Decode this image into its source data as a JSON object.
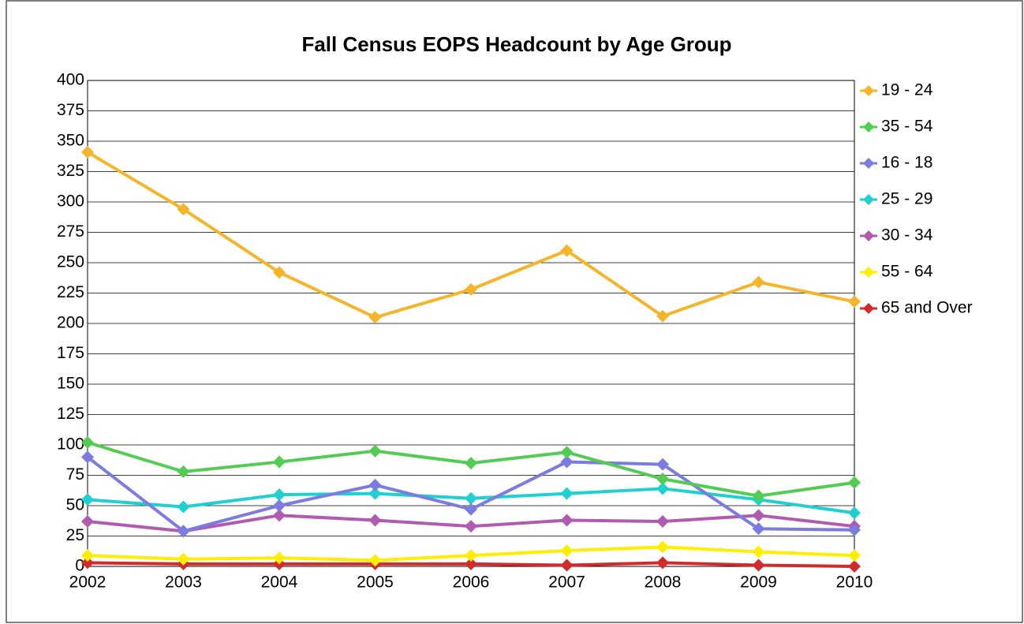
{
  "chart_data": {
    "type": "line",
    "title": "Fall Census EOPS Headcount by Age Group",
    "categories": [
      "2002",
      "2003",
      "2004",
      "2005",
      "2006",
      "2007",
      "2008",
      "2009",
      "2010"
    ],
    "series": [
      {
        "name": "19 - 24",
        "color": "#f5b52b",
        "values": [
          341,
          294,
          242,
          205,
          228,
          260,
          206,
          234,
          218
        ]
      },
      {
        "name": "35 - 54",
        "color": "#52cc52",
        "values": [
          102,
          78,
          86,
          95,
          85,
          94,
          72,
          58,
          69
        ]
      },
      {
        "name": "16 - 18",
        "color": "#7b7be0",
        "values": [
          90,
          29,
          50,
          67,
          47,
          86,
          84,
          31,
          30
        ]
      },
      {
        "name": "25 - 29",
        "color": "#1fd0d0",
        "values": [
          55,
          49,
          59,
          60,
          56,
          60,
          64,
          55,
          44
        ]
      },
      {
        "name": "30 - 34",
        "color": "#b05ab0",
        "values": [
          37,
          29,
          42,
          38,
          33,
          38,
          37,
          42,
          33
        ]
      },
      {
        "name": "55 - 64",
        "color": "#ffee00",
        "values": [
          9,
          6,
          7,
          5,
          9,
          13,
          16,
          12,
          9
        ]
      },
      {
        "name": "65 and Over",
        "color": "#d22b2b",
        "values": [
          3,
          2,
          2,
          2,
          2,
          1,
          3,
          1,
          0
        ]
      }
    ],
    "ylim": [
      0,
      400
    ],
    "yticks": [
      0,
      25,
      50,
      75,
      100,
      125,
      150,
      175,
      200,
      225,
      250,
      275,
      300,
      325,
      350,
      375,
      400
    ],
    "grid": true,
    "legend": "right"
  }
}
